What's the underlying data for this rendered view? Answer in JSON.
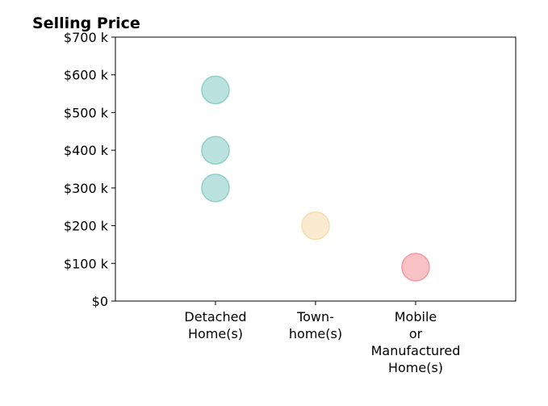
{
  "chart_data": {
    "type": "scatter",
    "title": "Selling Price",
    "xlabel": "",
    "ylabel": "",
    "ylim": [
      0,
      700000
    ],
    "yticks": [
      {
        "value": 0,
        "label": "$0"
      },
      {
        "value": 100000,
        "label": "$100 k"
      },
      {
        "value": 200000,
        "label": "$200 k"
      },
      {
        "value": 300000,
        "label": "$300 k"
      },
      {
        "value": 400000,
        "label": "$400 k"
      },
      {
        "value": 500000,
        "label": "$500 k"
      },
      {
        "value": 600000,
        "label": "$600 k"
      },
      {
        "value": 700000,
        "label": "$700 k"
      }
    ],
    "categories": [
      {
        "lines": [
          "Detached",
          "Home(s)"
        ]
      },
      {
        "lines": [
          "Town-",
          "home(s)"
        ]
      },
      {
        "lines": [
          "Mobile",
          "or",
          "Manufactured",
          "Home(s)"
        ]
      }
    ],
    "grid": false,
    "points": [
      {
        "category": 0,
        "y": 560000,
        "color": "#8ecfc9"
      },
      {
        "category": 0,
        "y": 400000,
        "color": "#8ecfc9"
      },
      {
        "category": 0,
        "y": 300000,
        "color": "#8ecfc9"
      },
      {
        "category": 1,
        "y": 200000,
        "color": "#f7deb0"
      },
      {
        "category": 2,
        "y": 90000,
        "color": "#f4999e"
      }
    ]
  }
}
